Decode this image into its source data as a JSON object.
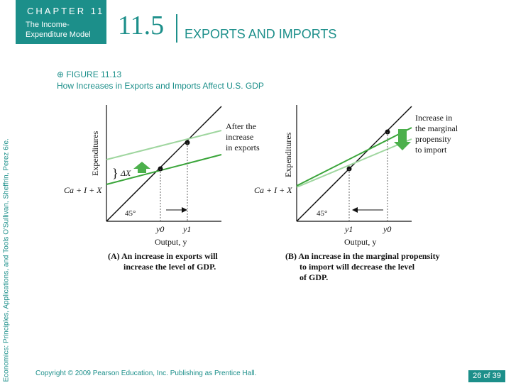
{
  "header": {
    "chapter_label": "CHAPTER 11",
    "chapter_subtitle": "The Income-Expenditure Model",
    "section_number": "11.5",
    "section_title": "EXPORTS AND IMPORTS"
  },
  "side_text": "Economics: Principles, Applications, and Tools  O'Sullivan, Sheffrin, Perez  6/e.",
  "figure": {
    "label": "FIGURE 11.13",
    "description": "How Increases in Exports and Imports Affect U.S. GDP",
    "panel_a": {
      "y_axis_label": "Expenditures",
      "x_axis_label": "Output, y",
      "line_label": "Ca + I + X",
      "annotation": "After the increase in exports",
      "delta_label": "ΔX",
      "angle_label": "45°",
      "y0_label": "y0",
      "y1_label": "y1",
      "caption_line1": "(A) An increase in exports will",
      "caption_line2": "increase the level of GDP."
    },
    "panel_b": {
      "y_axis_label": "Expenditures",
      "x_axis_label": "Output, y",
      "line_label": "Ca + I + X",
      "annotation": "Increase in the marginal propensity to import",
      "angle_label": "45°",
      "y0_label": "y0",
      "y1_label": "y1",
      "caption_line1": "(B) An increase in the marginal propensity",
      "caption_line2": "to import will decrease the level",
      "caption_line3": "of GDP."
    }
  },
  "footer": {
    "copyright": "Copyright © 2009 Pearson Education, Inc. Publishing as Prentice Hall.",
    "page": "26 of 39"
  }
}
